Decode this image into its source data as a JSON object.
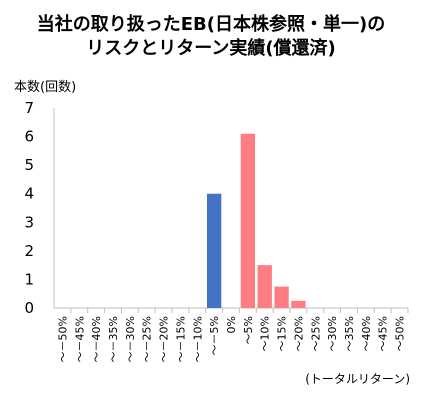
{
  "chart_data": {
    "type": "bar",
    "title_lines": [
      "当社の取り扱ったEB(日本株参照・単一)の",
      "リスクとリターン実績(償還済)"
    ],
    "ylabel": "本数(回数)",
    "xlabel": "(トータルリターン)",
    "ylim": [
      0,
      7
    ],
    "yticks": [
      0,
      1,
      2,
      3,
      4,
      5,
      6,
      7
    ],
    "grid": false,
    "categories": [
      "～－50%",
      "～－45%",
      "～－40%",
      "～－35%",
      "～－30%",
      "～－25%",
      "～－20%",
      "～－15%",
      "～－10%",
      "～－5%",
      "0%",
      "～5%",
      "～10%",
      "～15%",
      "～20%",
      "～25%",
      "～30%",
      "～35%",
      "～40%",
      "～45%",
      "～50%"
    ],
    "values": [
      0,
      0,
      0,
      0,
      0,
      0,
      0,
      0,
      0,
      4,
      0,
      6.1,
      1.5,
      0.75,
      0.25,
      0,
      0,
      0,
      0,
      0,
      0
    ],
    "colors": {
      "negative": "#4472C4",
      "positive": "#FF7C80",
      "axis": "#bfbfbf"
    }
  }
}
